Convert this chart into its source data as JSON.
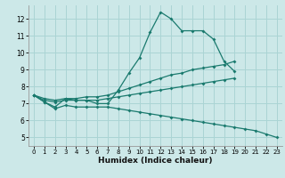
{
  "xlabel": "Humidex (Indice chaleur)",
  "background_color": "#cce8e8",
  "grid_color": "#aad4d4",
  "line_color": "#1a7a6e",
  "xlim": [
    -0.5,
    23.5
  ],
  "ylim": [
    4.5,
    12.8
  ],
  "yticks": [
    5,
    6,
    7,
    8,
    9,
    10,
    11,
    12
  ],
  "xticks": [
    0,
    1,
    2,
    3,
    4,
    5,
    6,
    7,
    8,
    9,
    10,
    11,
    12,
    13,
    14,
    15,
    16,
    17,
    18,
    19,
    20,
    21,
    22,
    23
  ],
  "series": [
    {
      "x": [
        0,
        1,
        2,
        3,
        4,
        5,
        6,
        7,
        8,
        9,
        10,
        11,
        12,
        13,
        14,
        15,
        16,
        17,
        18,
        19
      ],
      "y": [
        7.5,
        7.1,
        6.8,
        7.3,
        7.2,
        7.2,
        7.0,
        7.0,
        7.8,
        8.8,
        9.7,
        11.2,
        12.4,
        12.0,
        11.3,
        11.3,
        11.3,
        10.8,
        9.5,
        8.9
      ]
    },
    {
      "x": [
        0,
        1,
        2,
        3,
        4,
        5,
        6,
        7,
        8,
        9,
        10,
        11,
        12,
        13,
        14,
        15,
        16,
        17,
        18,
        19
      ],
      "y": [
        7.5,
        7.3,
        7.2,
        7.3,
        7.3,
        7.4,
        7.4,
        7.5,
        7.7,
        7.9,
        8.1,
        8.3,
        8.5,
        8.7,
        8.8,
        9.0,
        9.1,
        9.2,
        9.3,
        9.5
      ]
    },
    {
      "x": [
        0,
        1,
        2,
        3,
        4,
        5,
        6,
        7,
        8,
        9,
        10,
        11,
        12,
        13,
        14,
        15,
        16,
        17,
        18,
        19
      ],
      "y": [
        7.5,
        7.2,
        7.1,
        7.2,
        7.2,
        7.2,
        7.2,
        7.3,
        7.4,
        7.5,
        7.6,
        7.7,
        7.8,
        7.9,
        8.0,
        8.1,
        8.2,
        8.3,
        8.4,
        8.5
      ]
    },
    {
      "x": [
        0,
        1,
        2,
        3,
        4,
        5,
        6,
        7,
        8,
        9,
        10,
        11,
        12,
        13,
        14,
        15,
        16,
        17,
        18,
        19,
        20,
        21,
        22,
        23
      ],
      "y": [
        7.5,
        7.1,
        6.7,
        6.9,
        6.8,
        6.8,
        6.8,
        6.8,
        6.7,
        6.6,
        6.5,
        6.4,
        6.3,
        6.2,
        6.1,
        6.0,
        5.9,
        5.8,
        5.7,
        5.6,
        5.5,
        5.4,
        5.2,
        5.0
      ]
    }
  ]
}
